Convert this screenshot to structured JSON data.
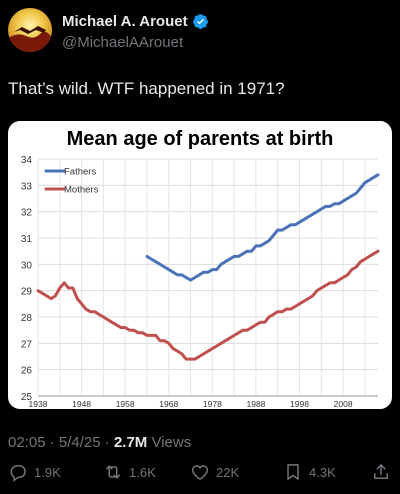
{
  "tweet": {
    "display_name": "Michael A. Arouet",
    "handle": "@MichaelAArouet",
    "text": "That’s wild. WTF happened in 1971?",
    "time": "02:05",
    "date": "5/4/25",
    "views_count": "2.7M",
    "views_label": "Views",
    "verified_color": "#1d9bf0"
  },
  "actions": {
    "replies": "1.9K",
    "reposts": "1.6K",
    "likes": "22K",
    "bookmarks": "4.3K"
  },
  "icons": [
    "reply-icon",
    "repost-icon",
    "like-icon",
    "bookmark-icon",
    "share-icon",
    "verified-badge-icon"
  ],
  "chart_data": {
    "type": "line",
    "title": "Mean age of parents at birth",
    "xlabel": "",
    "ylabel": "",
    "xlim": [
      1938,
      2016
    ],
    "ylim": [
      25,
      34
    ],
    "x_ticks": [
      "1938",
      "1948",
      "1958",
      "1968",
      "1978",
      "1988",
      "1998",
      "2008"
    ],
    "y_ticks": [
      "25",
      "26",
      "27",
      "28",
      "29",
      "30",
      "31",
      "32",
      "33",
      "34"
    ],
    "grid": true,
    "legend_position": "top-left",
    "series": [
      {
        "name": "Fathers",
        "color": "#4a72b8",
        "x": [
          1963,
          1964,
          1965,
          1966,
          1967,
          1968,
          1969,
          1970,
          1971,
          1972,
          1973,
          1974,
          1975,
          1976,
          1977,
          1978,
          1979,
          1980,
          1981,
          1982,
          1983,
          1984,
          1985,
          1986,
          1987,
          1988,
          1989,
          1990,
          1991,
          1992,
          1993,
          1994,
          1995,
          1996,
          1997,
          1998,
          1999,
          2000,
          2001,
          2002,
          2003,
          2004,
          2005,
          2006,
          2007,
          2008,
          2009,
          2010,
          2011,
          2012,
          2013,
          2014,
          2015,
          2016
        ],
        "values": [
          30.3,
          30.2,
          30.1,
          30.0,
          29.9,
          29.8,
          29.7,
          29.6,
          29.6,
          29.5,
          29.4,
          29.5,
          29.6,
          29.7,
          29.7,
          29.8,
          29.8,
          30.0,
          30.1,
          30.2,
          30.3,
          30.3,
          30.4,
          30.5,
          30.5,
          30.7,
          30.7,
          30.8,
          30.9,
          31.1,
          31.3,
          31.3,
          31.4,
          31.5,
          31.5,
          31.6,
          31.7,
          31.8,
          31.9,
          32.0,
          32.1,
          32.2,
          32.2,
          32.3,
          32.3,
          32.4,
          32.5,
          32.6,
          32.7,
          32.9,
          33.1,
          33.2,
          33.3,
          33.4
        ]
      },
      {
        "name": "Mothers",
        "color": "#c0504d",
        "x": [
          1938,
          1939,
          1940,
          1941,
          1942,
          1943,
          1944,
          1945,
          1946,
          1947,
          1948,
          1949,
          1950,
          1951,
          1952,
          1953,
          1954,
          1955,
          1956,
          1957,
          1958,
          1959,
          1960,
          1961,
          1962,
          1963,
          1964,
          1965,
          1966,
          1967,
          1968,
          1969,
          1970,
          1971,
          1972,
          1973,
          1974,
          1975,
          1976,
          1977,
          1978,
          1979,
          1980,
          1981,
          1982,
          1983,
          1984,
          1985,
          1986,
          1987,
          1988,
          1989,
          1990,
          1991,
          1992,
          1993,
          1994,
          1995,
          1996,
          1997,
          1998,
          1999,
          2000,
          2001,
          2002,
          2003,
          2004,
          2005,
          2006,
          2007,
          2008,
          2009,
          2010,
          2011,
          2012,
          2013,
          2014,
          2015,
          2016
        ],
        "values": [
          29.0,
          28.9,
          28.8,
          28.7,
          28.8,
          29.1,
          29.3,
          29.1,
          29.1,
          28.7,
          28.5,
          28.3,
          28.2,
          28.2,
          28.1,
          28.0,
          27.9,
          27.8,
          27.7,
          27.6,
          27.6,
          27.5,
          27.5,
          27.4,
          27.4,
          27.3,
          27.3,
          27.3,
          27.1,
          27.1,
          27.0,
          26.8,
          26.7,
          26.6,
          26.4,
          26.4,
          26.4,
          26.5,
          26.6,
          26.7,
          26.8,
          26.9,
          27.0,
          27.1,
          27.2,
          27.3,
          27.4,
          27.5,
          27.5,
          27.6,
          27.7,
          27.8,
          27.8,
          28.0,
          28.1,
          28.2,
          28.2,
          28.3,
          28.3,
          28.4,
          28.5,
          28.6,
          28.7,
          28.8,
          29.0,
          29.1,
          29.2,
          29.3,
          29.3,
          29.4,
          29.5,
          29.6,
          29.8,
          29.9,
          30.1,
          30.2,
          30.3,
          30.4,
          30.5
        ]
      }
    ]
  }
}
